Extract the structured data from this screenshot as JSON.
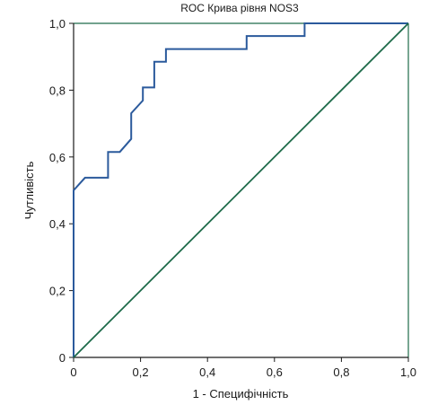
{
  "chart_data": {
    "type": "line",
    "title": "ROC Крива рівня NOS3",
    "xlabel": "1 - Специфічність",
    "ylabel": "Чутливість",
    "xlim": [
      0,
      1
    ],
    "ylim": [
      0,
      1
    ],
    "x_ticks": [
      "0",
      "0,2",
      "0,4",
      "0,6",
      "0,8",
      "1,0"
    ],
    "y_ticks": [
      "0",
      "0,2",
      "0,4",
      "0,6",
      "0,8",
      "1,0"
    ],
    "grid": false,
    "colors": {
      "roc": "#2b5a9c",
      "reference": "#1e6b4a",
      "axis": "#1a1a1a",
      "top_border": "#1e6b4a",
      "right_border": "#1e6b4a"
    },
    "series": [
      {
        "style": "step",
        "x": [
          0,
          0,
          0.034,
          0.103,
          0.103,
          0.138,
          0.172,
          0.172,
          0.207,
          0.207,
          0.241,
          0.241,
          0.276,
          0.276,
          0.517,
          0.517,
          0.69,
          0.69,
          1.0
        ],
        "y": [
          0,
          0.5,
          0.538,
          0.538,
          0.615,
          0.615,
          0.654,
          0.731,
          0.769,
          0.808,
          0.808,
          0.885,
          0.885,
          0.923,
          0.923,
          0.962,
          0.962,
          1.0,
          1.0
        ]
      },
      {
        "style": "reference",
        "x": [
          0,
          1
        ],
        "y": [
          0,
          1
        ]
      }
    ]
  }
}
